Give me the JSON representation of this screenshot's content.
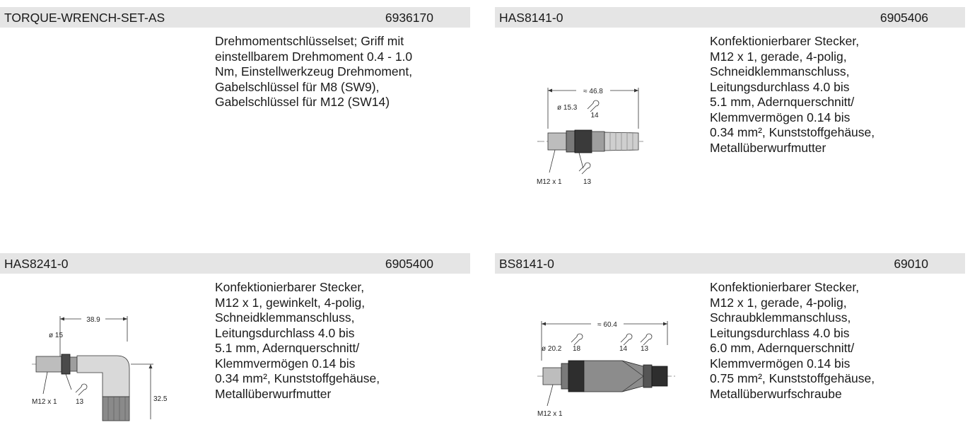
{
  "products": [
    {
      "name": "TORQUE-WRENCH-SET-AS",
      "number": "6936170",
      "description": "Drehmomentschlüsselset; Griff mit\neinstellbarem Drehmoment 0.4 - 1.0\nNm, Einstellwerkzeug Drehmoment,\nGabelschlüssel für M8 (SW9),\nGabelschlüssel für M12 (SW14)"
    },
    {
      "name": "HAS8141-0",
      "number": "6905406",
      "description": "Konfektionierbarer Stecker,\nM12 x 1, gerade, 4-polig,\nSchneidklemmanschluss,\nLeitungsdurchlass 4.0 bis\n5.1 mm, Adernquerschnitt/\nKlemmvermögen 0.14 bis\n0.34 mm², Kunststoffgehäuse,\nMetallüberwurfmutter",
      "drawing": {
        "length": "≈ 46.8",
        "diameter": "ø 15.3",
        "wrench_1": "14",
        "thread": "M12 x 1",
        "wrench_2": "13"
      }
    },
    {
      "name": "HAS8241-0",
      "number": "6905400",
      "description": "Konfektionierbarer Stecker,\nM12 x 1, gewinkelt, 4-polig,\nSchneidklemmanschluss,\nLeitungsdurchlass 4.0 bis\n5.1 mm, Adernquerschnitt/\nKlemmvermögen 0.14 bis\n0.34 mm², Kunststoffgehäuse,\nMetallüberwurfmutter",
      "drawing": {
        "length": "38.9",
        "diameter": "ø 15",
        "thread": "M12 x 1",
        "wrench": "13",
        "height": "32.5"
      }
    },
    {
      "name": "BS8141-0",
      "number": "69010",
      "description": "Konfektionierbarer Stecker,\nM12 x 1, gerade, 4-polig,\nSchraubklemmanschluss,\nLeitungsdurchlass 4.0 bis\n6.0 mm, Adernquerschnitt/\nKlemmvermögen 0.14 bis\n0.75 mm², Kunststoffgehäuse,\nMetallüberwurfschraube",
      "drawing": {
        "length": "≈ 60.4",
        "diameter": "ø 20.2",
        "wrench_1": "18",
        "wrench_2": "14",
        "wrench_3": "13",
        "thread": "M12 x 1"
      }
    }
  ]
}
